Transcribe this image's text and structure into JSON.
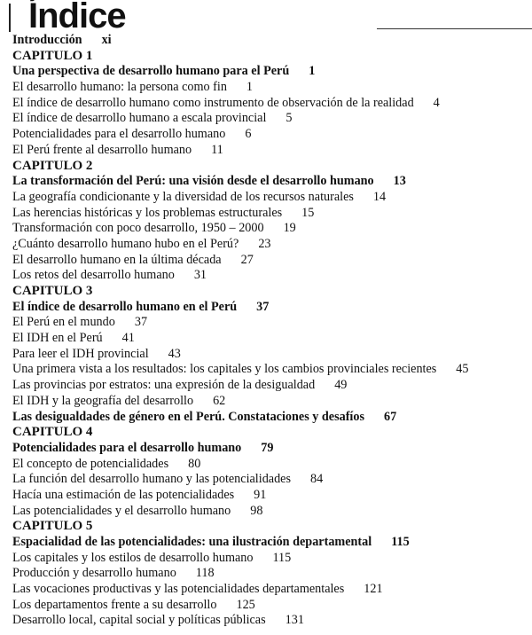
{
  "header": {
    "title": "Índice"
  },
  "entries": [
    {
      "text": "Introducción",
      "page": "xi",
      "style": "bold"
    },
    {
      "text": "CAPITULO 1",
      "page": "",
      "style": "chapter"
    },
    {
      "text": "Una perspectiva de desarrollo humano para el Perú",
      "page": "1",
      "style": "bold"
    },
    {
      "text": "El desarrollo humano: la persona como fin",
      "page": "1",
      "style": "normal"
    },
    {
      "text": "El índice de desarrollo humano como instrumento de observación de la realidad",
      "page": "4",
      "style": "normal"
    },
    {
      "text": "El índice de desarrollo humano a escala provincial",
      "page": "5",
      "style": "normal"
    },
    {
      "text": "Potencialidades para el desarrollo humano",
      "page": "6",
      "style": "normal"
    },
    {
      "text": "El Perú frente al desarrollo humano",
      "page": "11",
      "style": "normal"
    },
    {
      "text": "CAPITULO 2",
      "page": "",
      "style": "chapter"
    },
    {
      "text": "La transformación del Perú: una visión desde el desarrollo humano",
      "page": "13",
      "style": "bold"
    },
    {
      "text": "La geografía condicionante y la diversidad de los recursos naturales",
      "page": "14",
      "style": "normal"
    },
    {
      "text": "Las herencias históricas y los problemas estructurales",
      "page": "15",
      "style": "normal"
    },
    {
      "text": "Transformación con poco desarrollo, 1950 – 2000",
      "page": "19",
      "style": "normal"
    },
    {
      "text": "¿Cuánto desarrollo humano hubo en el Perú?",
      "page": "23",
      "style": "normal"
    },
    {
      "text": "El desarrollo humano en la última década",
      "page": "27",
      "style": "normal"
    },
    {
      "text": "Los retos del desarrollo humano",
      "page": "31",
      "style": "normal"
    },
    {
      "text": "CAPITULO 3",
      "page": "",
      "style": "chapter"
    },
    {
      "text": "El índice de desarrollo humano en el Perú",
      "page": "37",
      "style": "bold"
    },
    {
      "text": "El Perú en el mundo",
      "page": "37",
      "style": "normal"
    },
    {
      "text": "El IDH en el Perú",
      "page": "41",
      "style": "normal"
    },
    {
      "text": "Para leer el IDH provincial",
      "page": "43",
      "style": "normal"
    },
    {
      "text": "Una primera vista a los resultados: los capitales y los cambios provinciales recientes",
      "page": "45",
      "style": "normal"
    },
    {
      "text": "Las provincias por estratos: una expresión de la desigualdad",
      "page": "49",
      "style": "normal"
    },
    {
      "text": "El IDH y la geografía del desarrollo",
      "page": "62",
      "style": "normal"
    },
    {
      "text": "Las desigualdades de género en el  Perú.  Constataciones y desafíos",
      "page": "67",
      "style": "bold"
    },
    {
      "text": "CAPITULO 4",
      "page": "",
      "style": "chapter"
    },
    {
      "text": "Potencialidades para el desarrollo humano",
      "page": "79",
      "style": "bold"
    },
    {
      "text": "El concepto de potencialidades",
      "page": "80",
      "style": "normal"
    },
    {
      "text": "La función del desarrollo humano y las potencialidades",
      "page": "84",
      "style": "normal"
    },
    {
      "text": "Hacía una estimación de las potencialidades",
      "page": "91",
      "style": "normal"
    },
    {
      "text": "Las potencialidades y el desarrollo humano",
      "page": "98",
      "style": "normal"
    },
    {
      "text": "CAPITULO 5",
      "page": "",
      "style": "chapter"
    },
    {
      "text": "Espacialidad de las potencialidades: una ilustración departamental",
      "page": "115",
      "style": "bold"
    },
    {
      "text": "Los capitales  y los estilos de desarrollo humano",
      "page": "115",
      "style": "normal"
    },
    {
      "text": "Producción y desarrollo humano",
      "page": "118",
      "style": "normal"
    },
    {
      "text": "Las vocaciones productivas y las potencialidades departamentales",
      "page": "121",
      "style": "normal"
    },
    {
      "text": "Los departamentos frente a su desarrollo",
      "page": "125",
      "style": "normal"
    },
    {
      "text": "Desarrollo local, capital social y políticas públicas",
      "page": "131",
      "style": "normal"
    }
  ]
}
